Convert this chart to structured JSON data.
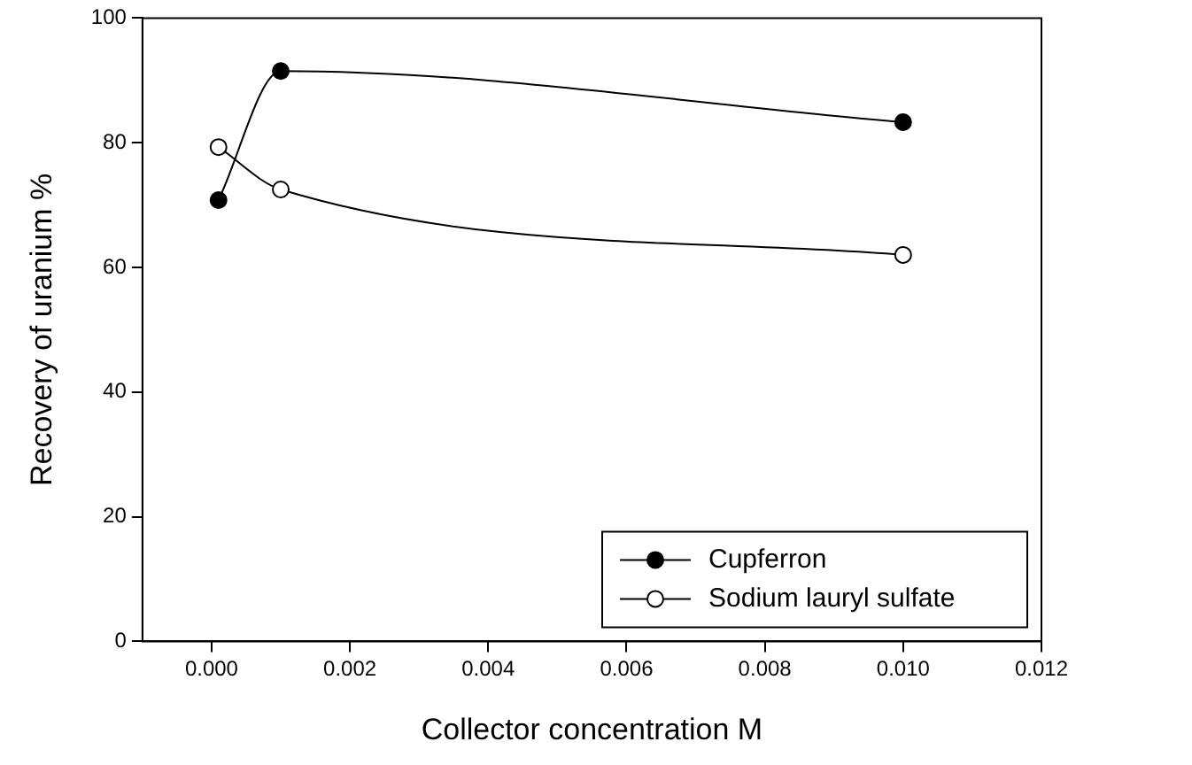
{
  "chart_data": {
    "type": "line",
    "xlabel": "Collector concentration M",
    "ylabel": "Recovery of uranium %",
    "xlim": [
      -0.001,
      0.012
    ],
    "xticks": [
      {
        "value": 0,
        "label": "0.000"
      },
      {
        "value": 0.002,
        "label": "0.002"
      },
      {
        "value": 0.004,
        "label": "0.004"
      },
      {
        "value": 0.006,
        "label": "0.006"
      },
      {
        "value": 0.008,
        "label": "0.008"
      },
      {
        "value": 0.01,
        "label": "0.010"
      },
      {
        "value": 0.012,
        "label": "0.012"
      }
    ],
    "ylim": [
      0,
      100
    ],
    "yticks": [
      0,
      20,
      40,
      60,
      80,
      100
    ],
    "grid": false,
    "legend": "bottom right",
    "marker": "circle",
    "line_style": "solid",
    "series": [
      {
        "name": "Cupferron",
        "color": "#000000",
        "x": [
          0.0001,
          0.001,
          0.01
        ],
        "values": [
          70.8,
          91.5,
          83.3
        ]
      },
      {
        "name": "Sodium lauryl sulfate",
        "color": "#000000",
        "x": [
          0.0001,
          0.001,
          0.01
        ],
        "values": [
          79.3,
          72.5,
          62
        ]
      }
    ]
  }
}
